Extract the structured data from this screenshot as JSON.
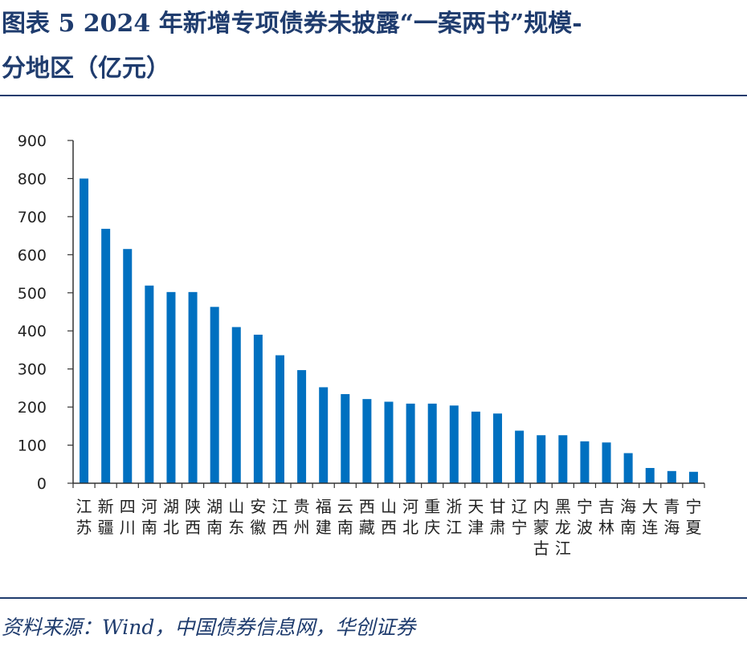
{
  "header": {
    "title_line1": "图表 5   2024 年新增专项债券未披露“一案两书”规模-",
    "title_line2": "分地区（亿元）"
  },
  "footer": {
    "source": "资料来源：Wind，中国债券信息网，华创证券"
  },
  "colors": {
    "bar": "#0070c0",
    "title": "#1f3c6e",
    "rule": "#1f3c6e",
    "axis": "#333333"
  },
  "chart_data": {
    "type": "bar",
    "title": "2024年新增专项债券未披露“一案两书”规模-分地区（亿元）",
    "xlabel": "",
    "ylabel": "亿元",
    "ylim": [
      0,
      900
    ],
    "yticks": [
      0,
      100,
      200,
      300,
      400,
      500,
      600,
      700,
      800,
      900
    ],
    "grid": false,
    "legend": "none",
    "categories": [
      "江苏",
      "新疆",
      "四川",
      "河南",
      "湖北",
      "陕西",
      "湖南",
      "山东",
      "安徽",
      "江西",
      "贵州",
      "福建",
      "云南",
      "西藏",
      "山西",
      "河北",
      "重庆",
      "浙江",
      "天津",
      "甘肃",
      "辽宁",
      "内蒙古",
      "黑龙江",
      "宁波",
      "吉林",
      "海南",
      "大连",
      "青海",
      "宁夏"
    ],
    "values": [
      800,
      668,
      615,
      519,
      502,
      502,
      463,
      410,
      390,
      336,
      297,
      252,
      234,
      221,
      214,
      209,
      209,
      204,
      188,
      183,
      138,
      126,
      126,
      110,
      107,
      79,
      40,
      32,
      30
    ]
  }
}
